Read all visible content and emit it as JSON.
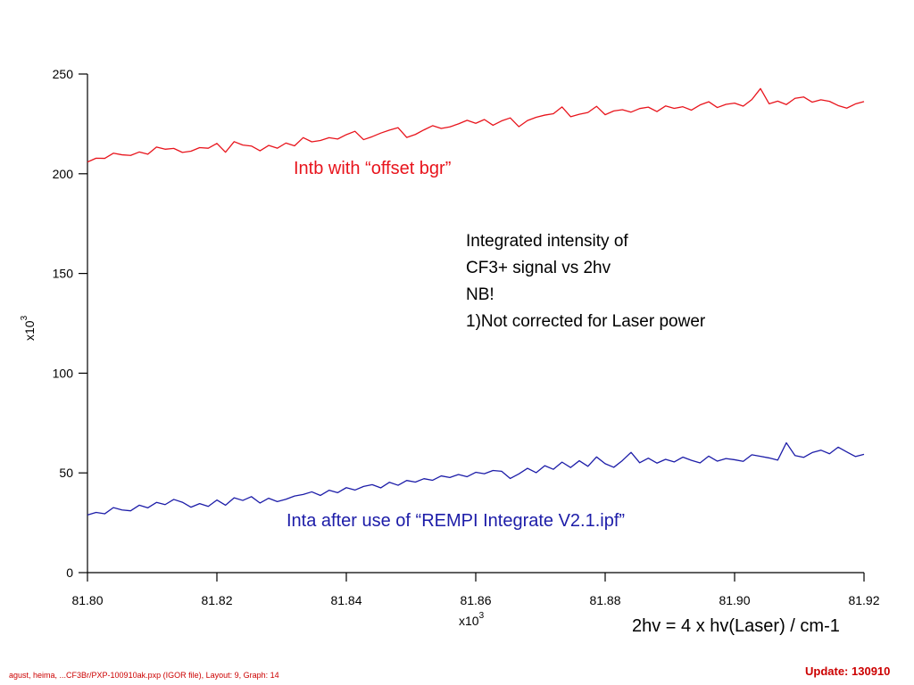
{
  "chart_data": {
    "type": "line",
    "x_multiplier_label": "x10",
    "x_multiplier_exp": "3",
    "y_multiplier_label": "x10",
    "y_multiplier_exp": "3",
    "xlim": [
      81.8,
      81.92
    ],
    "ylim": [
      0,
      250
    ],
    "x_ticks": [
      "81.80",
      "81.82",
      "81.84",
      "81.86",
      "81.88",
      "81.90",
      "81.92"
    ],
    "x_tick_values": [
      81.8,
      81.82,
      81.84,
      81.86,
      81.88,
      81.9,
      81.92
    ],
    "y_ticks": [
      "0",
      "50",
      "100",
      "150",
      "200",
      "250"
    ],
    "y_tick_values": [
      0,
      50,
      100,
      150,
      200,
      250
    ],
    "grid": false,
    "series": [
      {
        "name": "Intb with “offset bgr”",
        "color": "#e8141c",
        "values": [
          205.9,
          207.8,
          207.7,
          210.3,
          209.5,
          209.2,
          210.9,
          209.8,
          213.4,
          212.3,
          212.7,
          210.7,
          211.3,
          213.1,
          212.8,
          215.2,
          210.8,
          216.1,
          214.4,
          213.9,
          211.5,
          214.2,
          212.8,
          215.4,
          214.0,
          218.1,
          216.0,
          216.7,
          218.1,
          217.4,
          219.6,
          221.3,
          217.1,
          218.6,
          220.4,
          221.9,
          223.1,
          218.2,
          219.7,
          222.0,
          224.1,
          222.7,
          223.5,
          225.0,
          226.8,
          225.3,
          227.2,
          224.3,
          226.5,
          228.0,
          223.6,
          226.7,
          228.3,
          229.4,
          230.1,
          233.5,
          228.6,
          229.8,
          230.7,
          233.8,
          229.6,
          231.5,
          232.1,
          230.9,
          232.7,
          233.4,
          231.2,
          234.0,
          232.8,
          233.6,
          231.9,
          234.5,
          236.1,
          233.2,
          234.8,
          235.4,
          233.9,
          237.2,
          242.7,
          235.1,
          236.4,
          234.7,
          237.8,
          238.5,
          235.9,
          237.1,
          236.3,
          234.2,
          232.9,
          235.0,
          236.2
        ],
        "x_start": 81.8,
        "x_end": 81.92
      },
      {
        "name": "Inta  after use of “REMPI Integrate V2.1.ipf”",
        "color": "#1c1ca8",
        "values": [
          28.9,
          30.2,
          29.5,
          32.6,
          31.4,
          31.0,
          33.8,
          32.5,
          35.2,
          34.1,
          36.7,
          35.3,
          32.8,
          34.6,
          33.2,
          36.4,
          33.8,
          37.5,
          36.2,
          38.1,
          34.9,
          37.3,
          35.6,
          36.8,
          38.4,
          39.2,
          40.5,
          38.7,
          41.3,
          40.1,
          42.6,
          41.4,
          43.2,
          44.1,
          42.5,
          45.3,
          43.8,
          46.2,
          45.4,
          47.1,
          46.3,
          48.5,
          47.7,
          49.2,
          48.1,
          50.3,
          49.6,
          51.2,
          50.8,
          47.2,
          49.5,
          52.3,
          50.1,
          53.6,
          51.8,
          55.4,
          52.7,
          56.1,
          53.3,
          58.0,
          54.6,
          52.8,
          56.2,
          60.3,
          55.1,
          57.4,
          54.9,
          56.8,
          55.5,
          57.9,
          56.3,
          55.0,
          58.4,
          55.9,
          57.2,
          56.6,
          55.8,
          59.1,
          58.3,
          57.5,
          56.4,
          65.1,
          58.7,
          57.8,
          60.2,
          61.4,
          59.6,
          62.9,
          60.5,
          58.2,
          59.3
        ],
        "x_start": 81.8,
        "x_end": 81.92
      }
    ]
  },
  "note_lines": [
    "Integrated intensity of",
    "CF3+ signal vs 2hv",
    "NB!",
    "1)Not corrected for Laser power"
  ],
  "x_caption": "2hv = 4 x hv(Laser) / cm-1",
  "footer_left": "agust, heima, ...CF3Br/PXP-100910ak.pxp (IGOR file), Layout: 9, Graph: 14",
  "footer_right": "Update: 130910"
}
